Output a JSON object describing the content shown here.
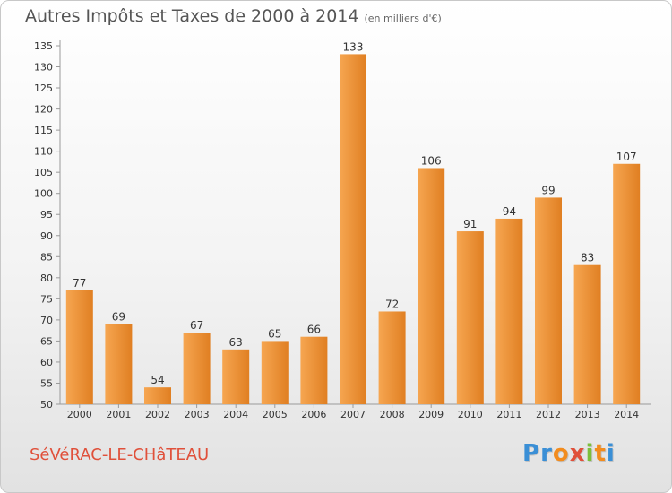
{
  "chart_data": {
    "type": "bar",
    "title": "Autres Impôts et Taxes de 2000 à 2014",
    "subtitle": "(en milliers d'€)",
    "categories": [
      "2000",
      "2001",
      "2002",
      "2003",
      "2004",
      "2005",
      "2006",
      "2007",
      "2008",
      "2009",
      "2010",
      "2011",
      "2012",
      "2013",
      "2014"
    ],
    "values": [
      77,
      69,
      54,
      67,
      63,
      65,
      66,
      133,
      72,
      106,
      91,
      94,
      99,
      83,
      107
    ],
    "ylim": [
      50,
      135
    ],
    "yticks": [
      50,
      55,
      60,
      65,
      70,
      75,
      80,
      85,
      90,
      95,
      100,
      105,
      110,
      115,
      120,
      125,
      130,
      135
    ],
    "grid": false,
    "bar_color_light": "#f6a651",
    "bar_color_dark": "#e07f22"
  },
  "commune": "SéVéRAC-LE-CHâTEAU",
  "logo": {
    "letters": [
      "P",
      "r",
      "o",
      "x",
      "i",
      "t",
      "i"
    ],
    "colors": [
      "#3a8fd6",
      "#3a8fd6",
      "#f28c1e",
      "#e0503a",
      "#7cbf3a",
      "#f28c1e",
      "#3a8fd6"
    ]
  }
}
